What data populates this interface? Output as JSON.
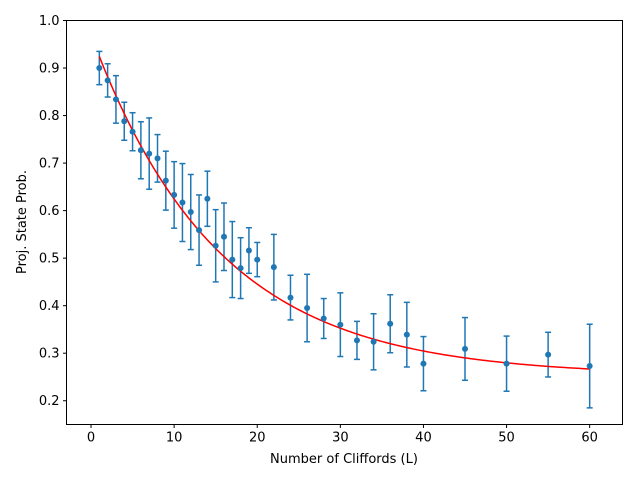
{
  "chart_data": {
    "type": "scatter",
    "title": "",
    "xlabel": "Number of Cliffords (L)",
    "ylabel": "Proj. State Prob.",
    "xlim": [
      -2.95,
      63.95
    ],
    "ylim": [
      0.15,
      1.0
    ],
    "xticks": [
      0,
      10,
      20,
      30,
      40,
      50,
      60
    ],
    "yticks": [
      0.2,
      0.3,
      0.4,
      0.5,
      0.6,
      0.7,
      0.8,
      0.9,
      1.0
    ],
    "xtick_labels": [
      "0",
      "10",
      "20",
      "30",
      "40",
      "50",
      "60"
    ],
    "ytick_labels": [
      "0.2",
      "0.3",
      "0.4",
      "0.5",
      "0.6",
      "0.7",
      "0.8",
      "0.9",
      "1.0"
    ],
    "grid": false,
    "legend": "none",
    "colors": {
      "points": "#1f77b4",
      "fit": "#ff0000",
      "axes": "#000000"
    },
    "series": [
      {
        "kind": "errorbar",
        "x": [
          1,
          2,
          3,
          4,
          5,
          6,
          7,
          8,
          9,
          10,
          11,
          12,
          13,
          14,
          15,
          16,
          17,
          18,
          19,
          20,
          22,
          24,
          26,
          28,
          30,
          32,
          34,
          36,
          38,
          40,
          45,
          50,
          55,
          60
        ],
        "y": [
          0.9,
          0.874,
          0.834,
          0.788,
          0.766,
          0.727,
          0.72,
          0.71,
          0.663,
          0.633,
          0.617,
          0.597,
          0.559,
          0.625,
          0.526,
          0.545,
          0.497,
          0.479,
          0.516,
          0.497,
          0.481,
          0.417,
          0.395,
          0.373,
          0.36,
          0.327,
          0.324,
          0.362,
          0.339,
          0.278,
          0.309,
          0.278,
          0.297,
          0.273
        ],
        "yerr": [
          0.035,
          0.035,
          0.05,
          0.04,
          0.04,
          0.06,
          0.075,
          0.05,
          0.062,
          0.07,
          0.082,
          0.079,
          0.074,
          0.058,
          0.076,
          0.071,
          0.08,
          0.064,
          0.048,
          0.036,
          0.069,
          0.047,
          0.071,
          0.042,
          0.067,
          0.04,
          0.059,
          0.061,
          0.068,
          0.057,
          0.066,
          0.058,
          0.047,
          0.088
        ]
      },
      {
        "kind": "fit-curve",
        "model": "A*exp(-x/tau)+B",
        "A": 0.717,
        "tau": 15.2,
        "B": 0.253,
        "x_range": [
          1,
          60
        ]
      }
    ]
  }
}
